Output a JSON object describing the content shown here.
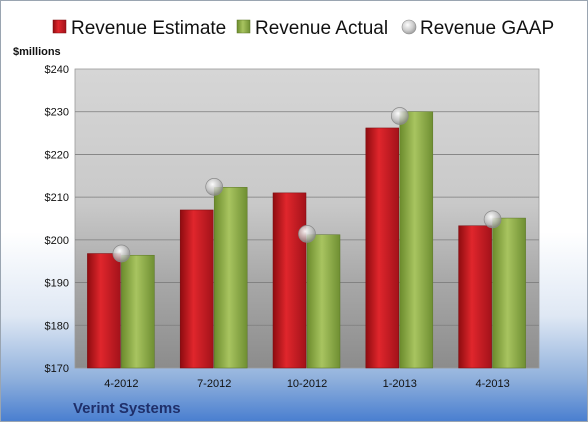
{
  "chart_data": {
    "type": "bar",
    "company": "Verint Systems",
    "ylabel": "$millions",
    "ylim": [
      170,
      240
    ],
    "yticks": [
      "$170",
      "$180",
      "$190",
      "$200",
      "$210",
      "$220",
      "$230",
      "$240"
    ],
    "ytick_values": [
      170,
      180,
      190,
      200,
      210,
      220,
      230,
      240
    ],
    "categories": [
      "4-2012",
      "7-2012",
      "10-2012",
      "1-2013",
      "4-2013"
    ],
    "series": [
      {
        "name": "Revenue Estimate",
        "kind": "bar",
        "color": "#c8141c",
        "values": [
          196.8,
          207.0,
          211.0,
          226.2,
          203.3
        ]
      },
      {
        "name": "Revenue Actual",
        "kind": "bar",
        "color": "#8fae4a",
        "values": [
          196.4,
          212.3,
          201.2,
          230.0,
          205.1
        ]
      },
      {
        "name": "Revenue GAAP",
        "kind": "marker",
        "color": "#b4b4b4",
        "values": [
          196.8,
          212.4,
          201.4,
          229.0,
          204.8
        ]
      }
    ],
    "grid": true,
    "legend": "top"
  }
}
